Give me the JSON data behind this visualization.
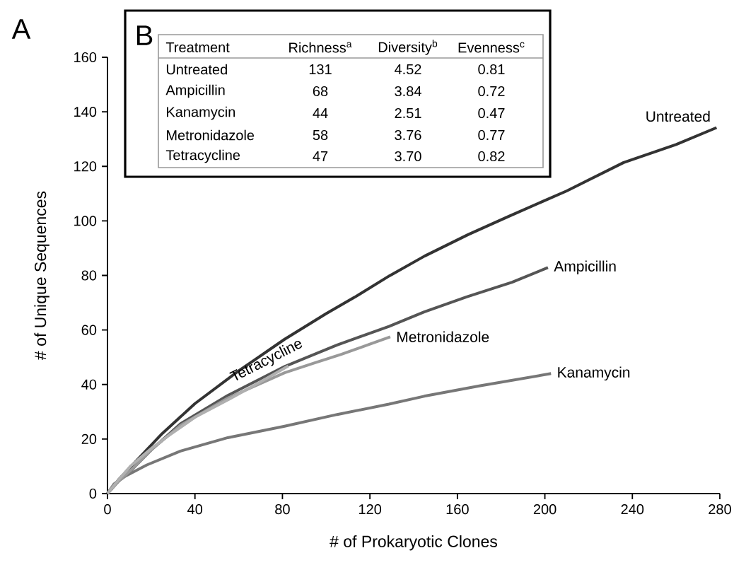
{
  "chart_data": {
    "type": "line",
    "xlabel": "# of Prokaryotic Clones",
    "ylabel": "# of Unique Sequences",
    "xlim": [
      0,
      280
    ],
    "ylim": [
      0,
      160
    ],
    "xticks": [
      0,
      40,
      80,
      120,
      160,
      200,
      240,
      280
    ],
    "yticks": [
      0,
      20,
      40,
      60,
      80,
      100,
      120,
      140,
      160
    ],
    "grid": false,
    "marker": "none",
    "line_style": "solid",
    "series": [
      {
        "name": "Untreated",
        "color": "#333333",
        "x": [
          0,
          5,
          12,
          25,
          40,
          60,
          81,
          100,
          113,
          129,
          145,
          165,
          183,
          210,
          236,
          260,
          278.5
        ],
        "values": [
          0,
          5,
          11,
          22,
          33,
          45,
          56.6,
          66,
          72,
          79.9,
          87.1,
          95,
          101.5,
          111,
          121.4,
          128,
          134.2
        ]
      },
      {
        "name": "Ampicillin",
        "color": "#555555",
        "x": [
          0,
          5,
          11.8,
          20,
          33.4,
          55,
          81,
          105,
          128.7,
          144.8,
          164.2,
          185,
          201.4
        ],
        "values": [
          0,
          4.5,
          9.3,
          16,
          25.6,
          36,
          46.6,
          54.5,
          61.3,
          66.6,
          72.1,
          77.5,
          82.9
        ]
      },
      {
        "name": "Kanamycin",
        "color": "#777777",
        "x": [
          0,
          3,
          8.4,
          18,
          33.4,
          55,
          81,
          105,
          128.7,
          144.8,
          170,
          202.8
        ],
        "values": [
          0,
          3.5,
          6.5,
          10.5,
          15.6,
          20.5,
          24.7,
          29,
          32.8,
          35.7,
          39.5,
          44
        ]
      },
      {
        "name": "Metronidazole",
        "color": "#999999",
        "x": [
          0,
          5,
          12,
          20,
          33.4,
          55,
          81,
          95,
          107.1,
          120,
          129.3
        ],
        "values": [
          0,
          4.5,
          9.5,
          16,
          25,
          35,
          44.3,
          48,
          51.1,
          54.8,
          57.5
        ]
      },
      {
        "name": "Tetracycline",
        "color": "#b0b0b0",
        "x": [
          0,
          5,
          10.7,
          20,
          27.7,
          40,
          56.1,
          70,
          82.7
        ],
        "values": [
          0,
          5,
          10.2,
          16.5,
          21.1,
          28,
          34.8,
          41,
          46.8
        ]
      }
    ],
    "annotations": [
      "A",
      "B",
      "Treatment",
      "Richness$^{a}$",
      "Diversity$^{b}$",
      "Evenness$^{c}$",
      "Untreated",
      "131",
      "4.52",
      "0.81",
      "Ampicillin",
      "68",
      "3.84",
      "0.72",
      "Kanamycin",
      "44",
      "2.51",
      "0.47",
      "Metronidazole",
      "58",
      "3.76",
      "0.77",
      "Tetracycline",
      "47",
      "3.70",
      "0.82"
    ]
  }
}
